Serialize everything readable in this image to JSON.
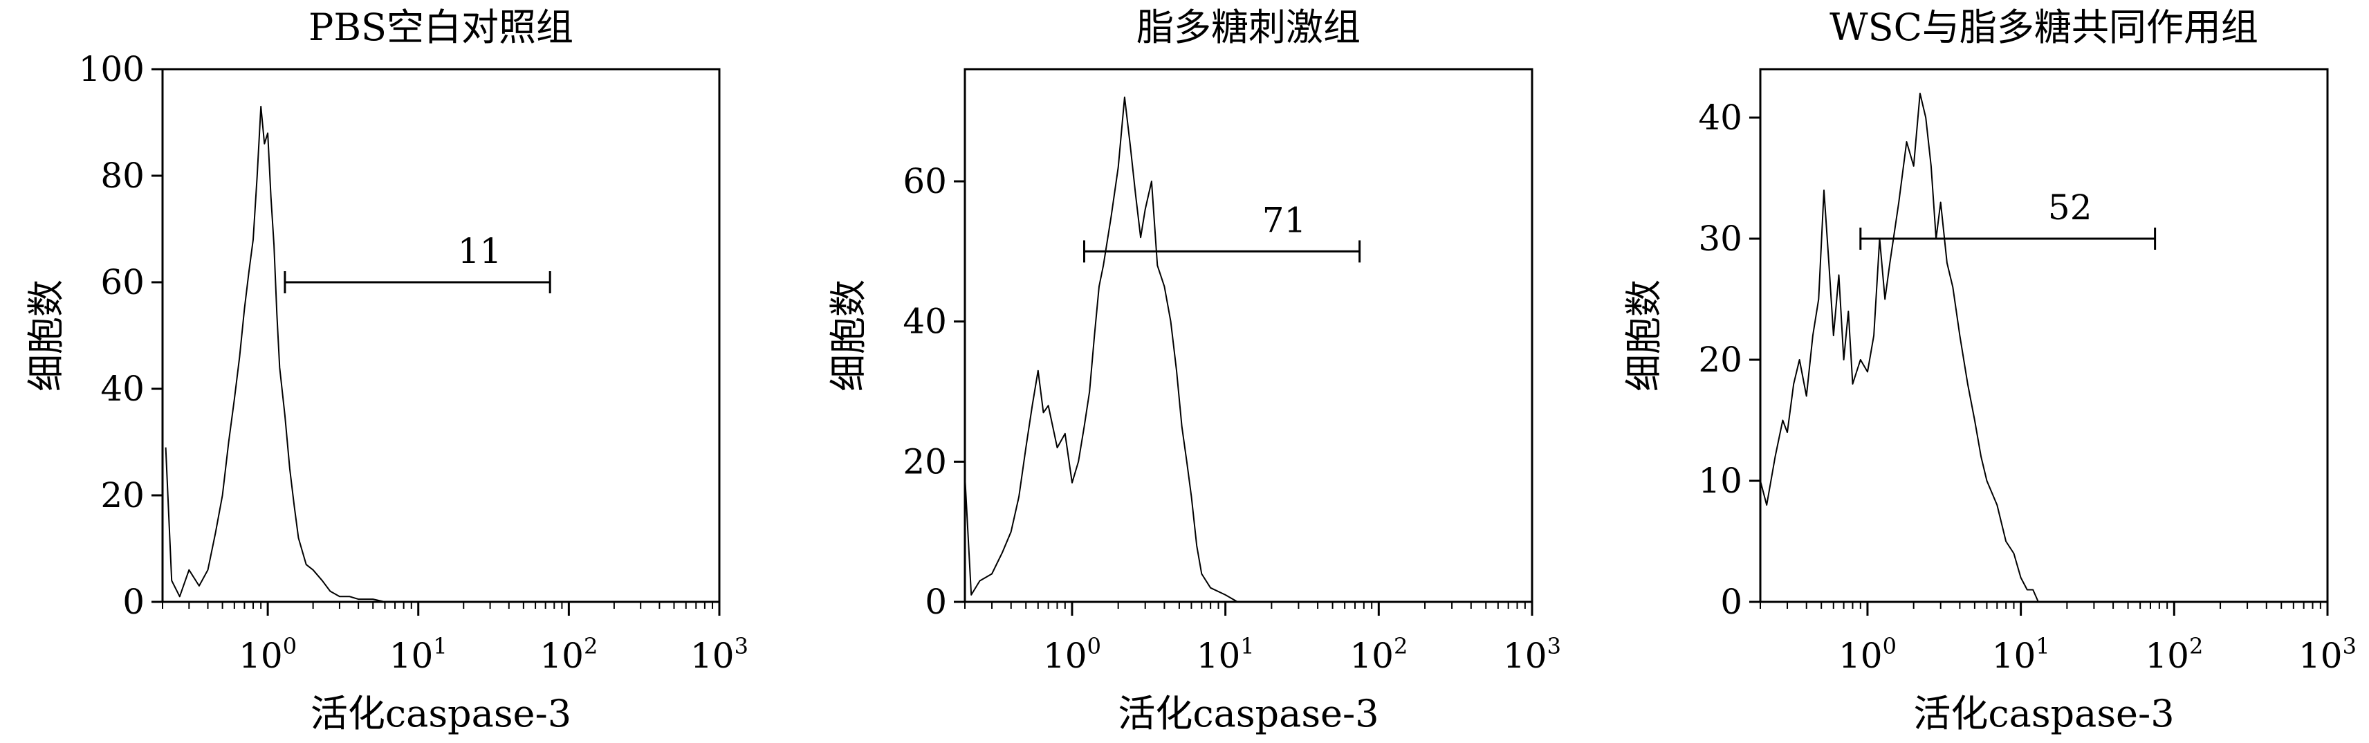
{
  "chart_data": [
    {
      "type": "line",
      "title": "PBS空白对照组",
      "xlabel": "活化caspase-3",
      "ylabel": "细胞数",
      "xscale": "log",
      "xlim": [
        0.2,
        1000
      ],
      "ylim": [
        0,
        100
      ],
      "yticks": [
        0,
        20,
        40,
        60,
        80,
        100
      ],
      "xticks": [
        {
          "base": "10",
          "exp": "0"
        },
        {
          "base": "10",
          "exp": "1"
        },
        {
          "base": "10",
          "exp": "2"
        },
        {
          "base": "10",
          "exp": "3"
        }
      ],
      "gate": {
        "label": "11",
        "x_start": 1.3,
        "x_end": 75,
        "y": 60
      },
      "series": [
        {
          "x": [
            0.21,
            0.23,
            0.26,
            0.3,
            0.35,
            0.4,
            0.45,
            0.5,
            0.55,
            0.6,
            0.65,
            0.7,
            0.75,
            0.8,
            0.85,
            0.9,
            0.95,
            1.0,
            1.05,
            1.1,
            1.15,
            1.2,
            1.3,
            1.4,
            1.5,
            1.6,
            1.8,
            2.0,
            2.3,
            2.6,
            3.0,
            3.5,
            4.0,
            5.0,
            6.0
          ],
          "y": [
            29,
            4,
            1,
            6,
            3,
            6,
            13,
            20,
            30,
            38,
            46,
            55,
            62,
            68,
            80,
            93,
            86,
            88,
            76,
            67,
            54,
            44,
            35,
            25,
            18,
            12,
            7,
            6,
            4,
            2,
            1,
            1,
            0.5,
            0.5,
            0
          ]
        }
      ]
    },
    {
      "type": "line",
      "title": "脂多糖刺激组",
      "xlabel": "活化caspase-3",
      "ylabel": "细胞数",
      "xscale": "log",
      "xlim": [
        0.2,
        1000
      ],
      "ylim": [
        0,
        76
      ],
      "yticks": [
        0,
        20,
        40,
        60
      ],
      "xticks": [
        {
          "base": "10",
          "exp": "0"
        },
        {
          "base": "10",
          "exp": "1"
        },
        {
          "base": "10",
          "exp": "2"
        },
        {
          "base": "10",
          "exp": "3"
        }
      ],
      "gate": {
        "label": "71",
        "x_start": 1.2,
        "x_end": 75,
        "y": 50
      },
      "series": [
        {
          "x": [
            0.2,
            0.22,
            0.25,
            0.3,
            0.35,
            0.4,
            0.45,
            0.5,
            0.55,
            0.6,
            0.65,
            0.7,
            0.8,
            0.9,
            1.0,
            1.1,
            1.2,
            1.3,
            1.4,
            1.5,
            1.6,
            1.8,
            2.0,
            2.2,
            2.4,
            2.6,
            2.8,
            3.0,
            3.3,
            3.6,
            4.0,
            4.4,
            4.8,
            5.2,
            5.6,
            6.0,
            6.5,
            7.0,
            8.0,
            10.0,
            12.0
          ],
          "y": [
            18,
            1,
            3,
            4,
            7,
            10,
            15,
            22,
            28,
            33,
            27,
            28,
            22,
            24,
            17,
            20,
            25,
            30,
            38,
            45,
            48,
            55,
            62,
            72,
            65,
            58,
            52,
            56,
            60,
            48,
            45,
            40,
            33,
            25,
            20,
            15,
            8,
            4,
            2,
            1,
            0
          ]
        }
      ]
    },
    {
      "type": "line",
      "title": "WSC与脂多糖共同作用组",
      "xlabel": "活化caspase-3",
      "ylabel": "细胞数",
      "xscale": "log",
      "xlim": [
        0.2,
        1000
      ],
      "ylim": [
        0,
        44
      ],
      "yticks": [
        0,
        10,
        20,
        30,
        40
      ],
      "xticks": [
        {
          "base": "10",
          "exp": "0"
        },
        {
          "base": "10",
          "exp": "1"
        },
        {
          "base": "10",
          "exp": "2"
        },
        {
          "base": "10",
          "exp": "3"
        }
      ],
      "gate": {
        "label": "52",
        "x_start": 0.9,
        "x_end": 75,
        "y": 30
      },
      "series": [
        {
          "x": [
            0.2,
            0.22,
            0.25,
            0.28,
            0.3,
            0.33,
            0.36,
            0.4,
            0.44,
            0.48,
            0.52,
            0.56,
            0.6,
            0.65,
            0.7,
            0.75,
            0.8,
            0.9,
            1.0,
            1.1,
            1.2,
            1.3,
            1.4,
            1.6,
            1.8,
            2.0,
            2.2,
            2.4,
            2.6,
            2.8,
            3.0,
            3.3,
            3.6,
            4.0,
            4.5,
            5.0,
            5.5,
            6.0,
            7.0,
            8.0,
            9.0,
            10.0,
            11.0,
            12.0,
            13.0
          ],
          "y": [
            10,
            8,
            12,
            15,
            14,
            18,
            20,
            17,
            22,
            25,
            34,
            28,
            22,
            27,
            20,
            24,
            18,
            20,
            19,
            22,
            30,
            25,
            28,
            33,
            38,
            36,
            42,
            40,
            36,
            30,
            33,
            28,
            26,
            22,
            18,
            15,
            12,
            10,
            8,
            5,
            4,
            2,
            1,
            1,
            0
          ]
        }
      ]
    }
  ]
}
